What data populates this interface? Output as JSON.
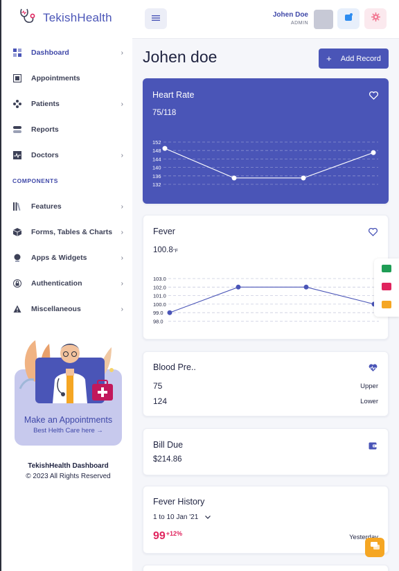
{
  "app": {
    "name": "TekishHealth"
  },
  "sidebar": {
    "items": [
      {
        "label": "Dashboard",
        "icon": "dashboard-icon"
      },
      {
        "label": "Appointments",
        "icon": "appointments-icon"
      },
      {
        "label": "Patients",
        "icon": "patients-icon"
      },
      {
        "label": "Reports",
        "icon": "reports-icon"
      },
      {
        "label": "Doctors",
        "icon": "doctors-icon"
      }
    ],
    "section_label": "COMPONENTS",
    "components": [
      {
        "label": "Features",
        "icon": "features-icon"
      },
      {
        "label": "Forms, Tables & Charts",
        "icon": "forms-icon"
      },
      {
        "label": "Apps & Widgets",
        "icon": "apps-icon"
      },
      {
        "label": "Authentication",
        "icon": "lock-icon"
      },
      {
        "label": "Miscellaneous",
        "icon": "warning-icon"
      }
    ],
    "promo": {
      "title": "Make an Appointments",
      "subtitle": "Best Helth Care here →"
    },
    "footer": {
      "title": "TekishHealth Dashboard",
      "copyright": "© 2023 All Rights Reserved"
    }
  },
  "topbar": {
    "user_name": "Johen Doe",
    "user_role": "ADMIN"
  },
  "main": {
    "page_title": "Johen doe",
    "add_button": "Add Record",
    "plus": "+"
  },
  "cards": {
    "heart_rate": {
      "title": "Heart Rate",
      "value": "75/118"
    },
    "fever": {
      "title": "Fever",
      "value": "100.8",
      "unit": "°F"
    },
    "blood_pressure": {
      "title": "Blood Pre..",
      "upper_value": "75",
      "upper_label": "Upper",
      "lower_value": "124",
      "lower_label": "Lower"
    },
    "bill_due": {
      "title": "Bill Due",
      "value": "$214.86"
    },
    "fever_history": {
      "title": "Fever History",
      "range": "1 to 10 Jan '21",
      "value": "99",
      "change": "+12%",
      "period": "Yesterday"
    }
  },
  "chart_data": [
    {
      "type": "line",
      "title": "",
      "y_ticks": [
        152,
        148,
        144,
        140,
        136,
        132
      ],
      "ylim": [
        132,
        152
      ],
      "series": [
        {
          "values": [
            149,
            135,
            135,
            147
          ]
        }
      ],
      "grid": true,
      "color": "#ffffff"
    },
    {
      "type": "line",
      "title": "",
      "y_ticks": [
        103.0,
        102.0,
        101.0,
        100.0,
        99.0,
        98.0
      ],
      "ylim": [
        98.0,
        103.0
      ],
      "series": [
        {
          "values": [
            99.0,
            102.0,
            102.0,
            100.0
          ]
        }
      ],
      "grid": true,
      "color": "#4a55b7"
    }
  ],
  "colors": {
    "accent": "#4a55b7",
    "danger": "#e0245e",
    "warning": "#f5a623",
    "success": "#1f9d55"
  }
}
